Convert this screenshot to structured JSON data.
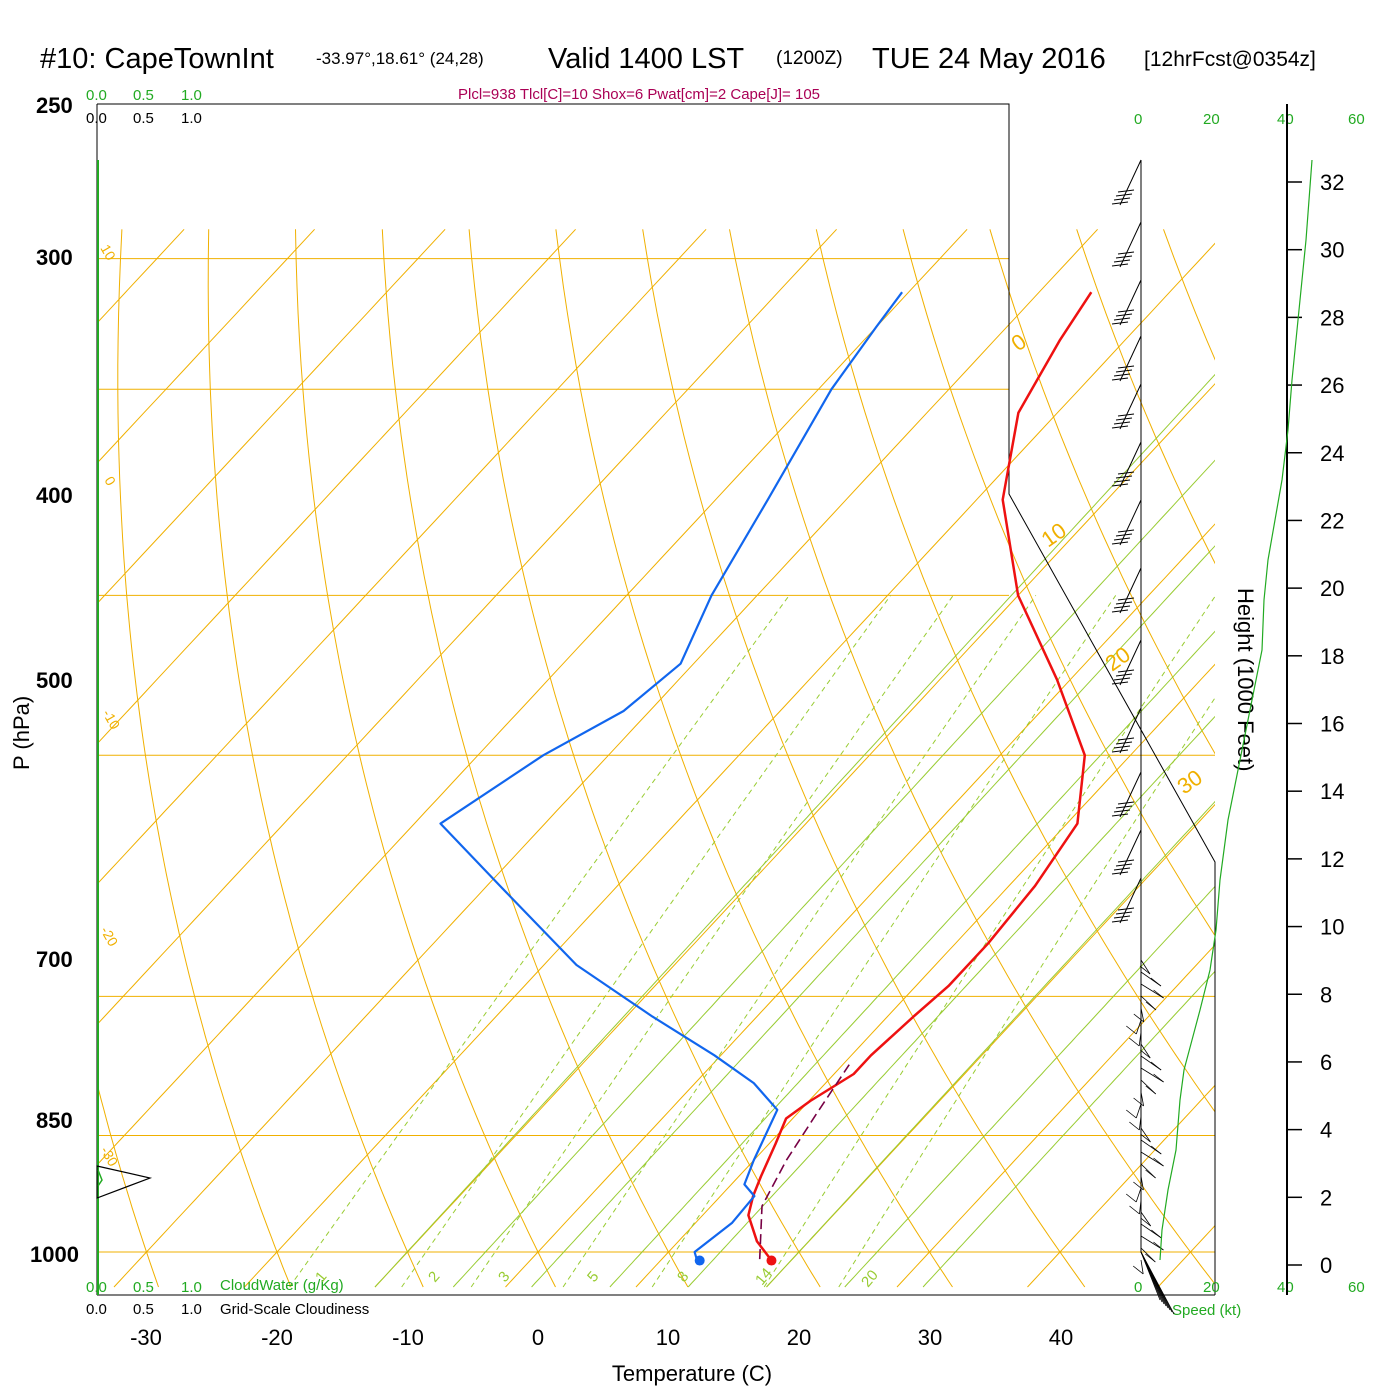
{
  "header": {
    "station": "#10: CapeTownInt",
    "coords": "-33.97°,18.61° (24,28)",
    "valid": "Valid 1400 LST",
    "utc": "(1200Z)",
    "date": "TUE 24 May 2016",
    "forecast": "[12hrFcst@0354z]"
  },
  "indices_text": "Plcl=938 Tlcl[C]=10 Shox=6 Pwat[cm]=2 Cape[J]= 105",
  "axes": {
    "pressure_label": "P (hPa)",
    "temperature_label": "Temperature (C)",
    "height_label": "Height (1000 Feet)",
    "cloudwater_label": "CloudWater (g/Kg)",
    "cloudiness_label": "Grid-Scale Cloudiness",
    "speed_label": "Speed (kt)"
  },
  "scale_labels": {
    "top_green": [
      "0.0",
      "0.5",
      "1.0"
    ],
    "top_black": [
      "0.0",
      "0.5",
      "1.0"
    ],
    "bottom_green": [
      "0.0",
      "0.5",
      "1.0"
    ],
    "bottom_black": [
      "0.0",
      "0.5",
      "1.0"
    ],
    "speed_top": [
      "0",
      "20",
      "40",
      "60"
    ],
    "speed_bottom": [
      "0",
      "20",
      "40",
      "60"
    ]
  },
  "pressure_ticks": [
    "250",
    "300",
    "400",
    "500",
    "700",
    "850",
    "1000"
  ],
  "pressure_values": [
    250,
    300,
    400,
    500,
    700,
    850,
    1000
  ],
  "temperature_ticks": [
    "-30",
    "-20",
    "-10",
    "0",
    "10",
    "20",
    "30",
    "40"
  ],
  "height_ticks": [
    "0",
    "2",
    "4",
    "6",
    "8",
    "10",
    "12",
    "14",
    "16",
    "18",
    "20",
    "22",
    "24",
    "26",
    "28",
    "30",
    "32"
  ],
  "isotherm_labels": [
    "10",
    "0",
    "-10",
    "-20",
    "-30",
    "0",
    "10",
    "20",
    "30"
  ],
  "mixing_ratio_labels": [
    "1",
    "2",
    "3",
    "5",
    "8",
    "14",
    "20"
  ],
  "colors": {
    "temperature": "#ee1111",
    "dewpoint": "#1166ee",
    "parcel": "#770044",
    "isotherm": "#f0b000",
    "adiabat": "#99cc33",
    "wind": "#000000",
    "speed": "#22aa22"
  },
  "chart_data": {
    "type": "line",
    "title": "#10: CapeTownInt Valid 1400 LST (1200Z) TUE 24 May 2016",
    "xlabel": "Temperature (C)",
    "ylabel": "P (hPa)",
    "y_scale": "log",
    "ylim": [
      1000,
      250
    ],
    "series": [
      {
        "name": "Temperature",
        "points": [
          [
            18.5,
            1012
          ],
          [
            16,
            985
          ],
          [
            13.5,
            950
          ],
          [
            12.5,
            925
          ],
          [
            11.7,
            900
          ],
          [
            10.5,
            860
          ],
          [
            9.5,
            830
          ],
          [
            10.1,
            810
          ],
          [
            11.5,
            780
          ],
          [
            11.5,
            760
          ],
          [
            12,
            720
          ],
          [
            12.5,
            690
          ],
          [
            12.5,
            650
          ],
          [
            12,
            600
          ],
          [
            10.8,
            550
          ],
          [
            6.5,
            500
          ],
          [
            -1,
            450
          ],
          [
            -10,
            400
          ],
          [
            -18,
            350
          ],
          [
            -23,
            310
          ],
          [
            -25,
            280
          ],
          [
            -26,
            262
          ]
        ]
      },
      {
        "name": "Dewpoint",
        "points": [
          [
            12.8,
            1012
          ],
          [
            12,
            1000
          ],
          [
            12.8,
            960
          ],
          [
            12.6,
            925
          ],
          [
            11,
            910
          ],
          [
            10,
            880
          ],
          [
            8.2,
            820
          ],
          [
            4.5,
            790
          ],
          [
            -0.5,
            760
          ],
          [
            -8,
            720
          ],
          [
            -17.5,
            670
          ],
          [
            -29,
            600
          ],
          [
            -38,
            550
          ],
          [
            -35,
            500
          ],
          [
            -32,
            470
          ],
          [
            -31,
            440
          ],
          [
            -33.5,
            400
          ],
          [
            -36,
            350
          ],
          [
            -39,
            300
          ],
          [
            -40,
            275
          ],
          [
            -40.5,
            262
          ]
        ]
      },
      {
        "name": "Parcel",
        "points": [
          [
            17.5,
            1010
          ],
          [
            13.9,
            938
          ],
          [
            12.5,
            880
          ],
          [
            11.5,
            825
          ],
          [
            10.5,
            770
          ]
        ]
      }
    ],
    "surface_markers": {
      "temperature": 18.5,
      "dewpoint": 13,
      "pressure": 1012
    },
    "height_axis_kft": [
      0,
      32
    ],
    "speed_axis_kt": [
      0,
      60
    ]
  }
}
